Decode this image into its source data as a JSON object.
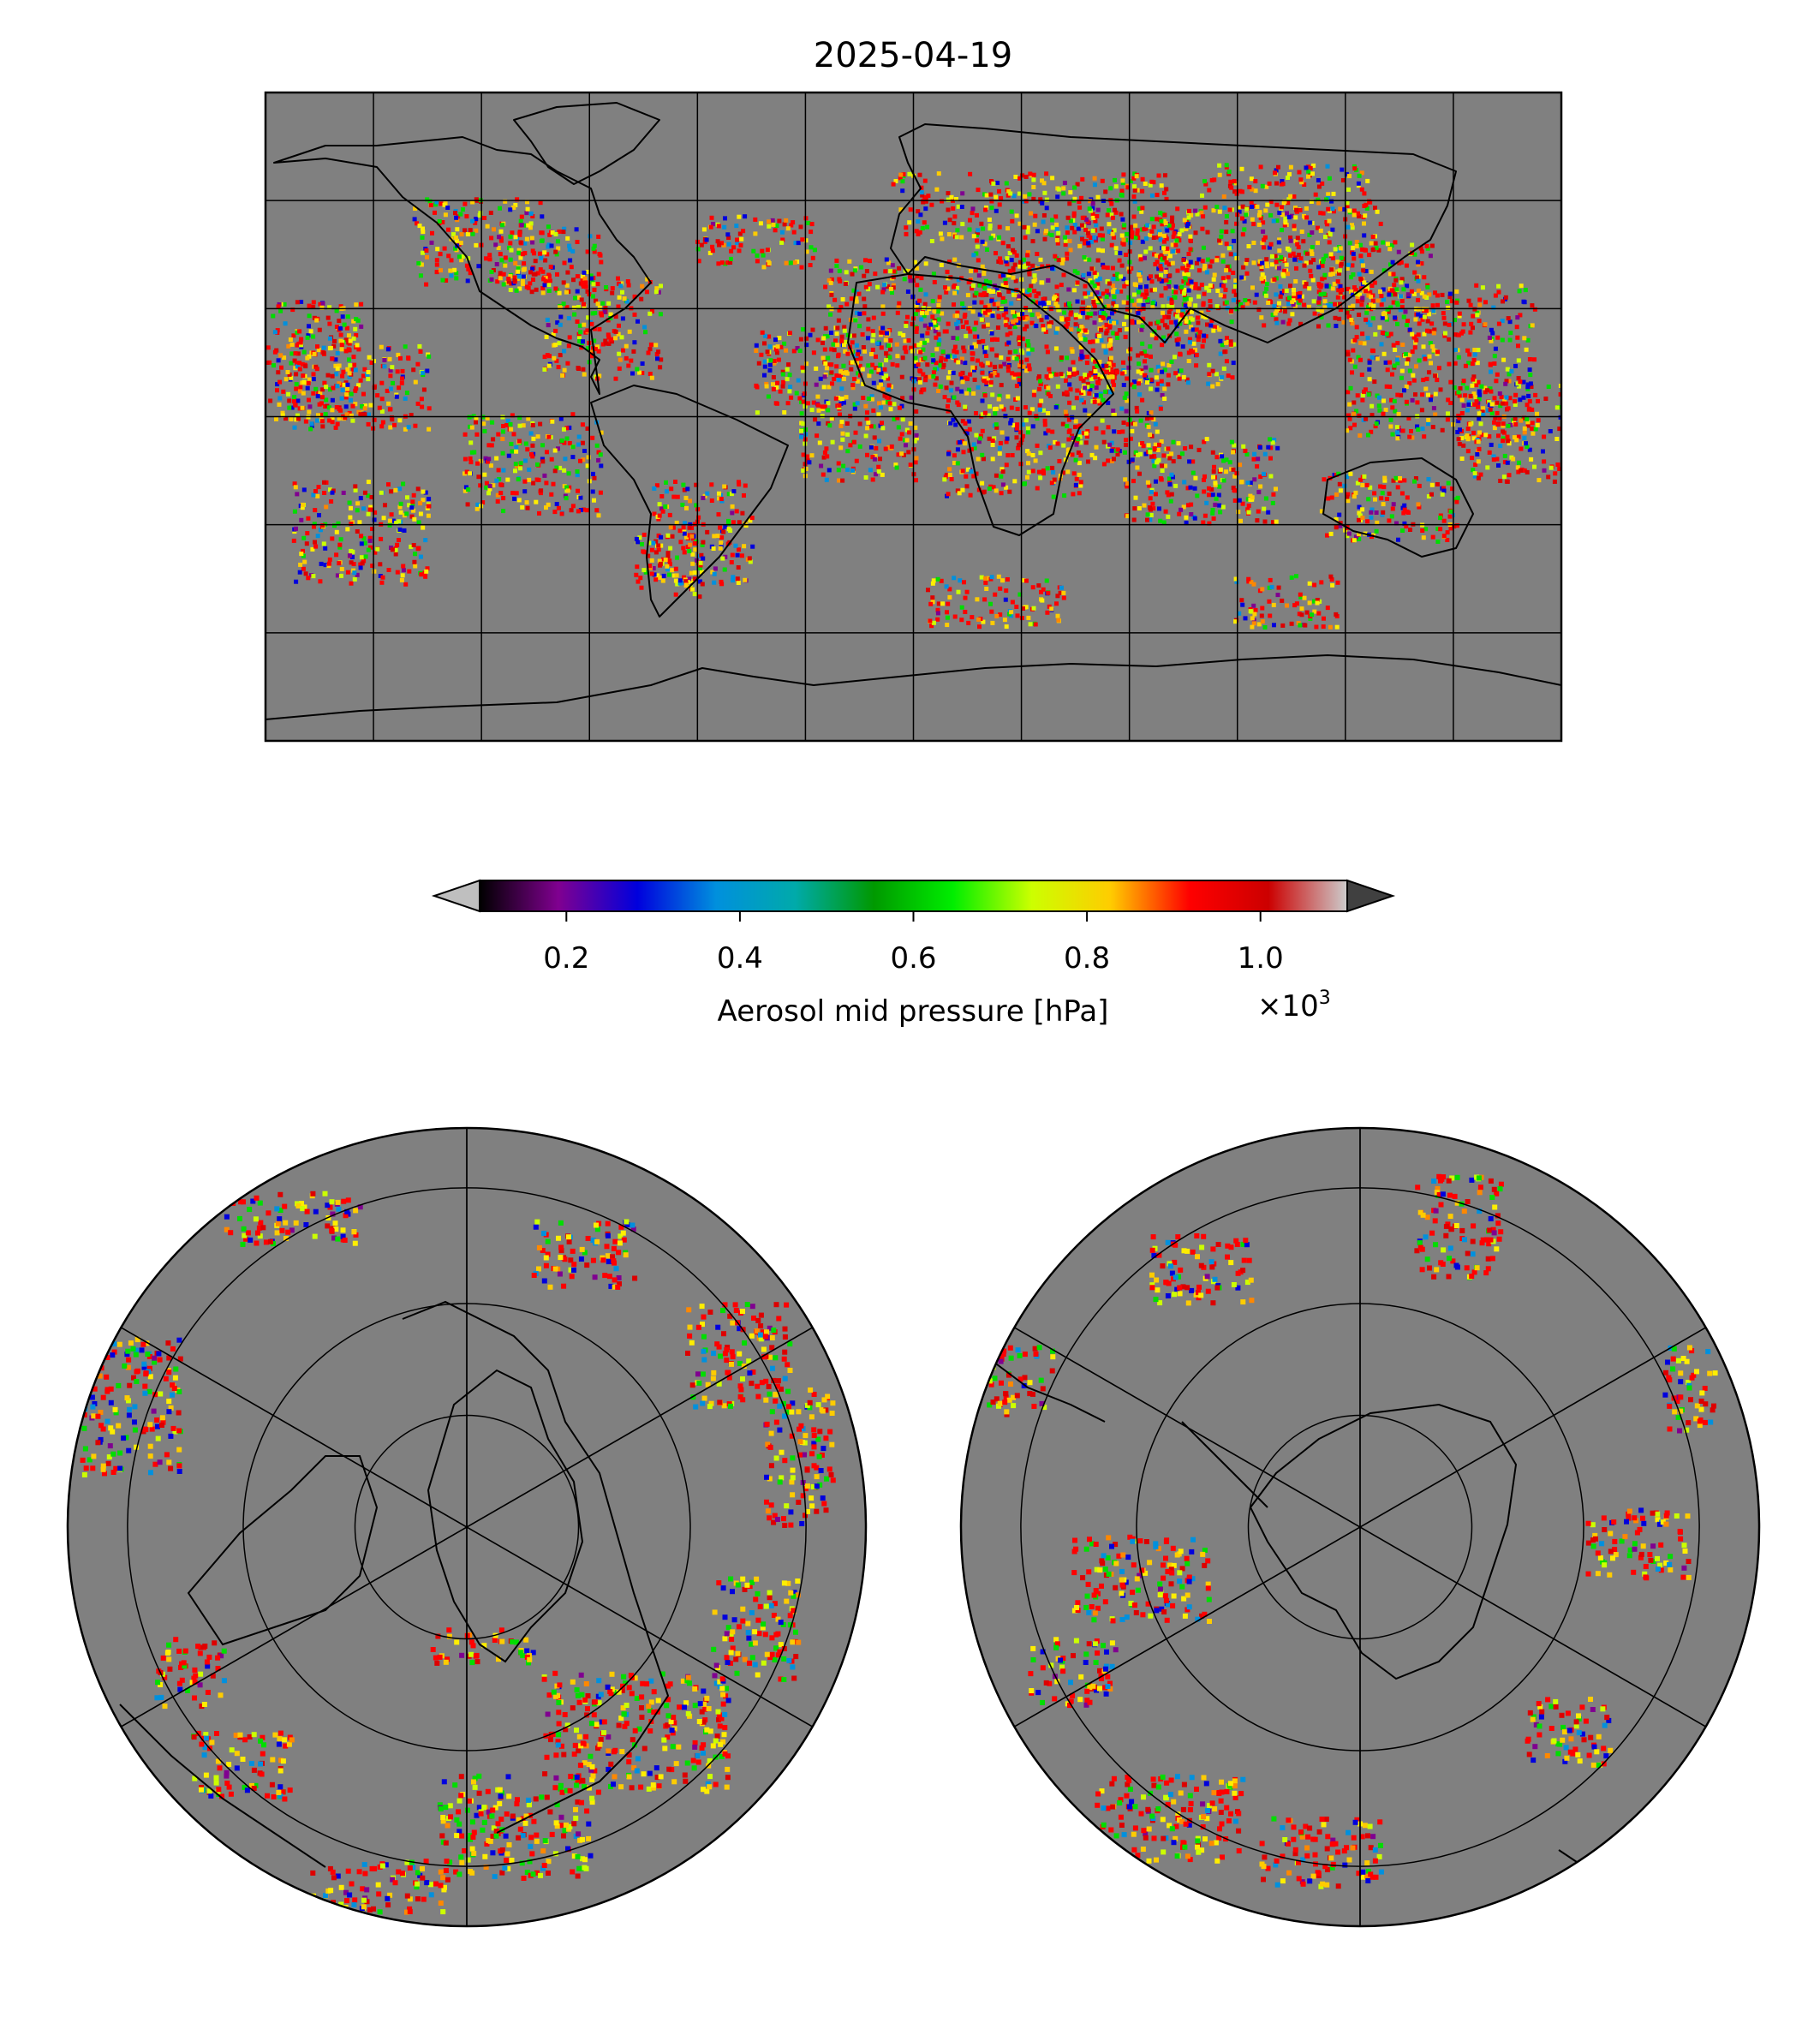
{
  "title": "2025-04-19",
  "colorbar": {
    "label": "Aerosol mid pressure [hPa]",
    "ticks": [
      "0.2",
      "0.4",
      "0.6",
      "0.8",
      "1.0"
    ],
    "tick_values": [
      0.2,
      0.4,
      0.6,
      0.8,
      1.0
    ],
    "range": [
      0.1,
      1.1
    ],
    "offset_text": "×10",
    "offset_exponent": "3",
    "extend": "both",
    "colormap": "nipy_spectral",
    "under_color": "#bfbfbf",
    "over_color": "#404040",
    "stops": [
      "#000000",
      "#800090",
      "#0000dd",
      "#0090dd",
      "#00aaaa",
      "#009900",
      "#00ee00",
      "#ccff00",
      "#ffcc00",
      "#ff0000",
      "#cc0000",
      "#cccccc"
    ]
  },
  "maps": {
    "background_color": "#808080",
    "panels": [
      "global-plate-carree",
      "north-polar-stereographic",
      "south-polar-stereographic"
    ]
  }
}
